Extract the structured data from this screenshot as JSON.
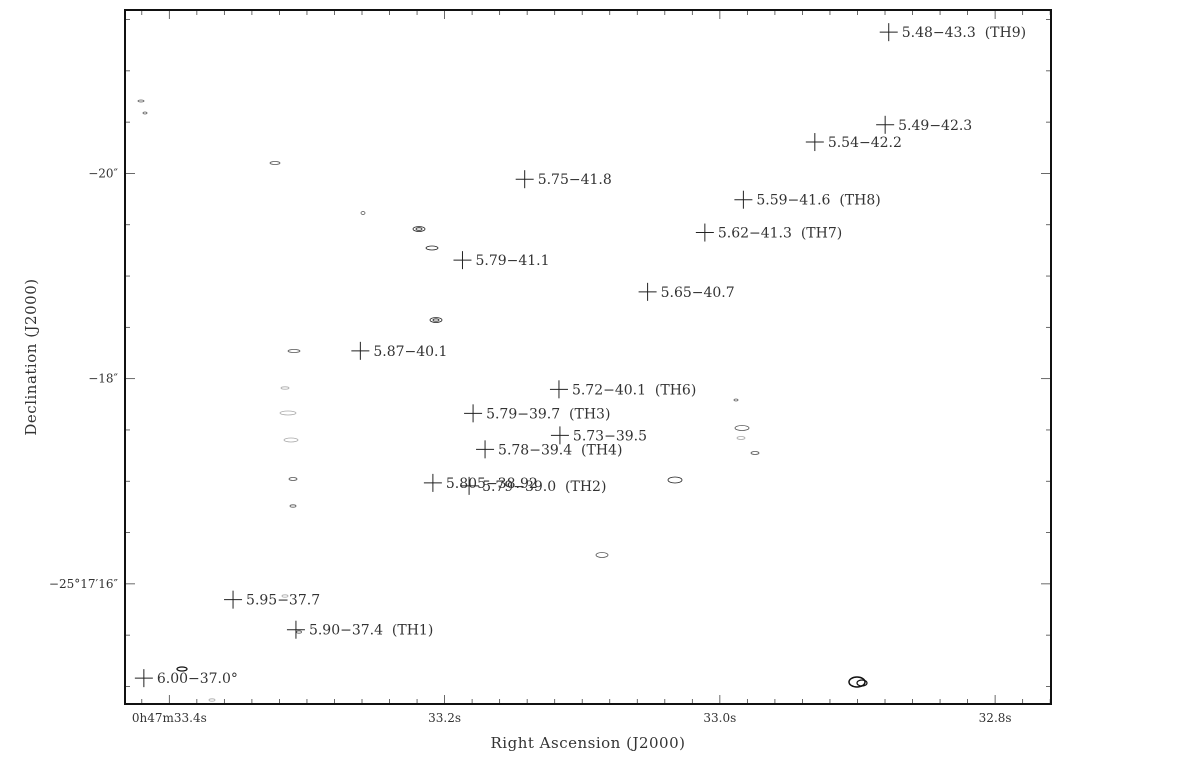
{
  "chart_data": {
    "type": "scatter",
    "title": "",
    "xlabel": "Right Ascension (J2000)",
    "ylabel": "Declination (J2000)",
    "xlim": [
      33.4322,
      32.7594
    ],
    "ylim": [
      -21.593,
      -14.829
    ],
    "x_ticks": [
      {
        "value": 33.4,
        "label": "0h47m33.4s"
      },
      {
        "value": 33.2,
        "label": "33.2s"
      },
      {
        "value": 33.0,
        "label": "33.0s"
      },
      {
        "value": 32.8,
        "label": "32.8s"
      }
    ],
    "y_ticks": [
      {
        "value": -16,
        "label": "−25°17′16″"
      },
      {
        "value": -18,
        "label": "−18″"
      },
      {
        "value": -20,
        "label": "−20″"
      }
    ],
    "marker_color": "#c0141c",
    "points": [
      {
        "label": "6.00−37.0°",
        "x": 33.4185,
        "y": -15.081,
        "r": 0.35
      },
      {
        "label": "5.90−37.4  (TH1)",
        "x": 33.308,
        "y": -15.553,
        "r": 0.1
      },
      {
        "label": "5.95−37.7",
        "x": 33.3537,
        "y": -15.846,
        "r": 0.07
      },
      {
        "label": "5.805−38.92",
        "x": 33.2085,
        "y": -16.984,
        "r": 0.13
      },
      {
        "label": "5.79−39.0  (TH2)",
        "x": 33.1822,
        "y": -16.955,
        "r": 0.31
      },
      {
        "label": "5.78−39.4  (TH4)",
        "x": 33.1706,
        "y": -17.311,
        "r": 0.4
      },
      {
        "label": "5.73−39.5",
        "x": 33.1162,
        "y": -17.447,
        "r": 0.06
      },
      {
        "label": "5.79−39.7  (TH3)",
        "x": 33.1793,
        "y": -17.662,
        "r": 0.4
      },
      {
        "label": "5.72−40.1  (TH6)",
        "x": 33.1169,
        "y": -17.896,
        "r": 0.06
      },
      {
        "label": "5.87−40.1",
        "x": 33.2612,
        "y": -18.271,
        "r": 0.3
      },
      {
        "label": "5.65−40.7",
        "x": 33.0525,
        "y": -18.846,
        "r": 0.06
      },
      {
        "label": "5.79−41.1",
        "x": 33.187,
        "y": -19.155,
        "r": 0.33
      },
      {
        "label": "5.62−41.3  (TH7)",
        "x": 33.0109,
        "y": -19.424,
        "r": 0.04
      },
      {
        "label": "5.59−41.6  (TH8)",
        "x": 32.9829,
        "y": -19.744,
        "r": 0
      },
      {
        "label": "5.75−41.8",
        "x": 33.1418,
        "y": -19.944,
        "r": 0.36
      },
      {
        "label": "5.54−42.2",
        "x": 32.931,
        "y": -20.306,
        "r": 0.06
      },
      {
        "label": "5.49−42.3",
        "x": 32.8799,
        "y": -20.474,
        "r": 0
      },
      {
        "label": "5.48−43.3  (TH9)",
        "x": 32.8773,
        "y": -21.377,
        "r": 0.04
      }
    ]
  }
}
